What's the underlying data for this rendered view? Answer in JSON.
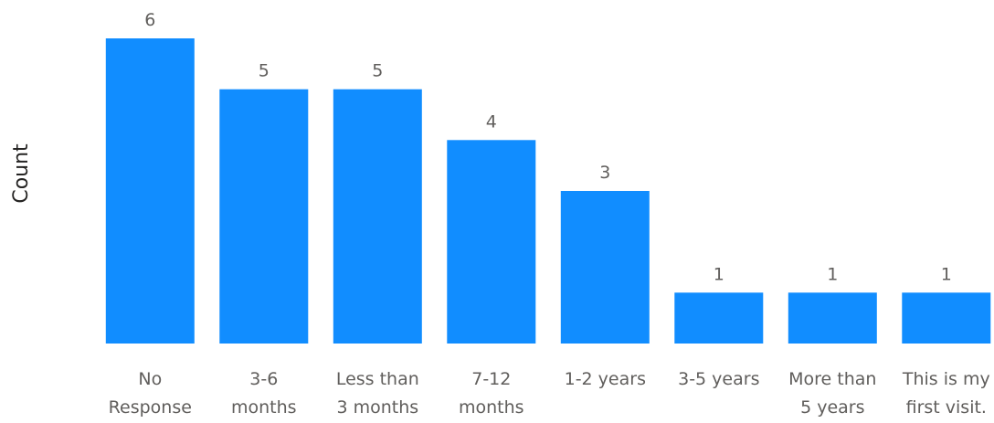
{
  "chart_data": {
    "type": "bar",
    "title": "",
    "xlabel": "",
    "ylabel": "Count",
    "ylim": [
      0,
      6
    ],
    "grid": false,
    "categories": [
      [
        "No",
        "Response"
      ],
      [
        "3-6",
        "months"
      ],
      [
        "Less than",
        "3 months"
      ],
      [
        "7-12",
        "months"
      ],
      [
        "1-2 years"
      ],
      [
        "3-5 years"
      ],
      [
        "More than",
        "5 years"
      ],
      [
        "This is my",
        "first visit."
      ]
    ],
    "values": [
      6,
      5,
      5,
      4,
      3,
      1,
      1,
      1
    ],
    "colors": {
      "bar": "#118DFF",
      "label": "#605E5C",
      "axis_title": "#252423"
    }
  }
}
